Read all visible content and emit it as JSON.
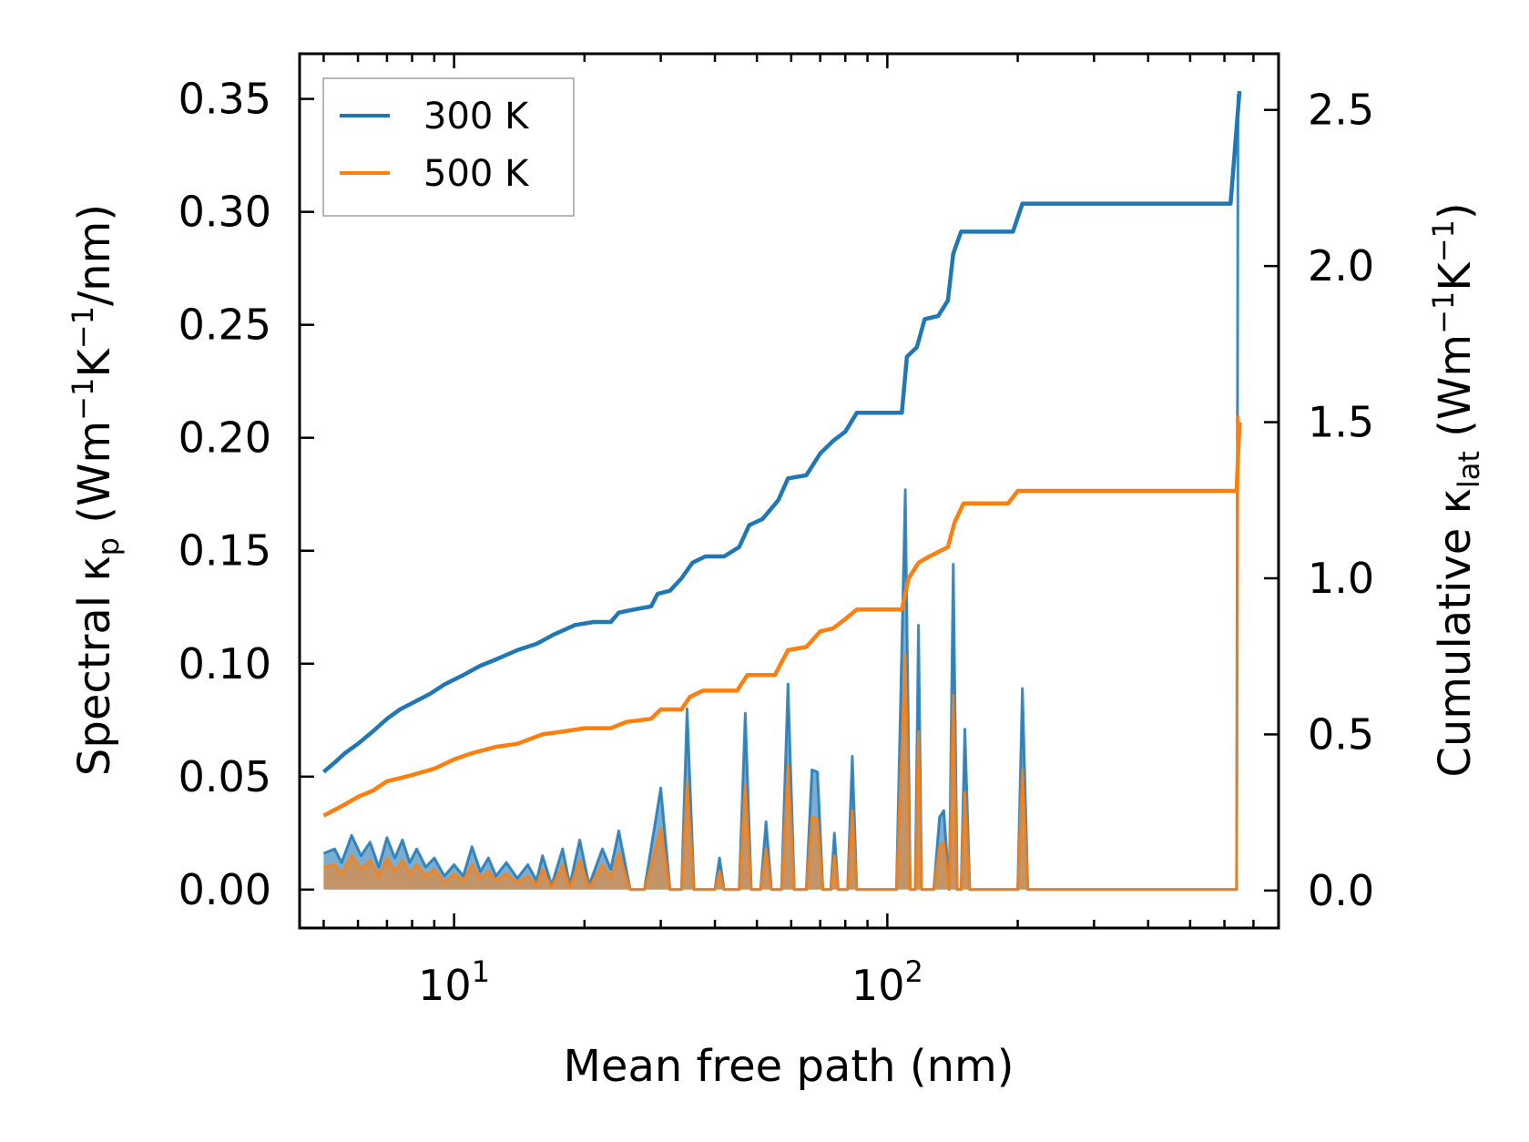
{
  "chart_data": {
    "type": "line",
    "x_scale": "log",
    "xlim": [
      4.4,
      800
    ],
    "ylim_left": [
      -0.017,
      0.37
    ],
    "ylim_right": [
      -0.12,
      2.68
    ],
    "xlabel": "Mean free path (nm)",
    "ylabel_left": {
      "main": "Spectral κ",
      "sub": "p",
      "unit_open": " (Wm",
      "exp1": "−1",
      "unit_mid": "K",
      "exp2": "−1",
      "unit_close": "/nm)"
    },
    "ylabel_right": {
      "main": "Cumulative κ",
      "sub": "lat",
      "unit_open": " (Wm",
      "exp1": "−1",
      "unit_mid": "K",
      "exp2": "−1",
      "unit_close": ")"
    },
    "x_ticks": [
      {
        "value": 10,
        "base": "10",
        "exp": "1"
      },
      {
        "value": 100,
        "base": "10",
        "exp": "2"
      }
    ],
    "y_ticks_left": [
      {
        "value": 0.0,
        "label": "0.00"
      },
      {
        "value": 0.05,
        "label": "0.05"
      },
      {
        "value": 0.1,
        "label": "0.10"
      },
      {
        "value": 0.15,
        "label": "0.15"
      },
      {
        "value": 0.2,
        "label": "0.20"
      },
      {
        "value": 0.25,
        "label": "0.25"
      },
      {
        "value": 0.3,
        "label": "0.30"
      },
      {
        "value": 0.35,
        "label": "0.35"
      }
    ],
    "y_ticks_right": [
      {
        "value": 0.0,
        "label": "0.0"
      },
      {
        "value": 0.5,
        "label": "0.5"
      },
      {
        "value": 1.0,
        "label": "1.0"
      },
      {
        "value": 1.5,
        "label": "1.5"
      },
      {
        "value": 2.0,
        "label": "2.0"
      },
      {
        "value": 2.5,
        "label": "2.5"
      }
    ],
    "legend_position": "top-left",
    "series": [
      {
        "name": "300 K",
        "color": "#1f77b4",
        "cumulative": [
          [
            5.0,
            0.38
          ],
          [
            5.3,
            0.41
          ],
          [
            5.6,
            0.44
          ],
          [
            6.0,
            0.47
          ],
          [
            6.5,
            0.51
          ],
          [
            7.0,
            0.55
          ],
          [
            7.5,
            0.58
          ],
          [
            8.0,
            0.6
          ],
          [
            8.8,
            0.63
          ],
          [
            9.5,
            0.66
          ],
          [
            10.5,
            0.69
          ],
          [
            11.5,
            0.72
          ],
          [
            12.5,
            0.74
          ],
          [
            14.0,
            0.77
          ],
          [
            15.5,
            0.79
          ],
          [
            17.0,
            0.82
          ],
          [
            19.0,
            0.85
          ],
          [
            21.0,
            0.86
          ],
          [
            23.0,
            0.86
          ],
          [
            24.0,
            0.89
          ],
          [
            26.0,
            0.9
          ],
          [
            28.5,
            0.91
          ],
          [
            29.5,
            0.95
          ],
          [
            31.5,
            0.96
          ],
          [
            33.5,
            1.0
          ],
          [
            35.5,
            1.05
          ],
          [
            38.0,
            1.07
          ],
          [
            42.0,
            1.07
          ],
          [
            45.5,
            1.1
          ],
          [
            48.0,
            1.17
          ],
          [
            51.5,
            1.19
          ],
          [
            56.0,
            1.25
          ],
          [
            59.0,
            1.32
          ],
          [
            65.0,
            1.33
          ],
          [
            70.0,
            1.4
          ],
          [
            75.0,
            1.44
          ],
          [
            80.0,
            1.47
          ],
          [
            85.0,
            1.53
          ],
          [
            108.0,
            1.53
          ],
          [
            111.0,
            1.71
          ],
          [
            117.0,
            1.74
          ],
          [
            122.0,
            1.83
          ],
          [
            131.0,
            1.84
          ],
          [
            138.0,
            1.89
          ],
          [
            142.0,
            2.04
          ],
          [
            148.0,
            2.11
          ],
          [
            195.0,
            2.11
          ],
          [
            205.0,
            2.2
          ],
          [
            620.0,
            2.2
          ],
          [
            650.0,
            2.56
          ]
        ],
        "spectral": [
          [
            5.0,
            0.016
          ],
          [
            5.3,
            0.018
          ],
          [
            5.5,
            0.012
          ],
          [
            5.8,
            0.024
          ],
          [
            6.1,
            0.015
          ],
          [
            6.4,
            0.021
          ],
          [
            6.7,
            0.01
          ],
          [
            7.0,
            0.023
          ],
          [
            7.3,
            0.014
          ],
          [
            7.6,
            0.022
          ],
          [
            7.9,
            0.012
          ],
          [
            8.2,
            0.018
          ],
          [
            8.6,
            0.01
          ],
          [
            9.0,
            0.014
          ],
          [
            9.5,
            0.006
          ],
          [
            10.0,
            0.011
          ],
          [
            10.5,
            0.006
          ],
          [
            11.0,
            0.019
          ],
          [
            11.5,
            0.008
          ],
          [
            12.0,
            0.014
          ],
          [
            12.5,
            0.006
          ],
          [
            13.2,
            0.012
          ],
          [
            14.0,
            0.005
          ],
          [
            14.8,
            0.011
          ],
          [
            15.5,
            0.004
          ],
          [
            16.0,
            0.015
          ],
          [
            16.8,
            0.002
          ],
          [
            17.8,
            0.018
          ],
          [
            18.5,
            0.002
          ],
          [
            19.5,
            0.022
          ],
          [
            20.5,
            0.002
          ],
          [
            22.0,
            0.018
          ],
          [
            23.0,
            0.009
          ],
          [
            24.0,
            0.026
          ],
          [
            25.5,
            0.0
          ],
          [
            27.5,
            0.0
          ],
          [
            30.0,
            0.045
          ],
          [
            31.5,
            0.0
          ],
          [
            33.5,
            0.0
          ],
          [
            34.5,
            0.08
          ],
          [
            35.8,
            0.0
          ],
          [
            40.0,
            0.0
          ],
          [
            41.0,
            0.014
          ],
          [
            42.0,
            0.0
          ],
          [
            45.5,
            0.0
          ],
          [
            47.0,
            0.078
          ],
          [
            48.5,
            0.0
          ],
          [
            51.0,
            0.0
          ],
          [
            52.5,
            0.03
          ],
          [
            54.0,
            0.0
          ],
          [
            57.0,
            0.0
          ],
          [
            59.0,
            0.091
          ],
          [
            61.0,
            0.0
          ],
          [
            65.0,
            0.0
          ],
          [
            67.0,
            0.053
          ],
          [
            69.0,
            0.052
          ],
          [
            71.0,
            0.0
          ],
          [
            74.0,
            0.0
          ],
          [
            75.5,
            0.025
          ],
          [
            77.0,
            0.0
          ],
          [
            81.0,
            0.0
          ],
          [
            83.0,
            0.059
          ],
          [
            85.0,
            0.0
          ],
          [
            105.0,
            0.0
          ],
          [
            110.0,
            0.177
          ],
          [
            113.0,
            0.0
          ],
          [
            116.0,
            0.0
          ],
          [
            118.0,
            0.117
          ],
          [
            120.0,
            0.0
          ],
          [
            128.0,
            0.0
          ],
          [
            132.0,
            0.032
          ],
          [
            135.0,
            0.035
          ],
          [
            139.0,
            0.0
          ],
          [
            142.0,
            0.144
          ],
          [
            145.0,
            0.0
          ],
          [
            148.0,
            0.0
          ],
          [
            151.0,
            0.071
          ],
          [
            155.0,
            0.0
          ],
          [
            200.0,
            0.0
          ],
          [
            205.0,
            0.089
          ],
          [
            211.0,
            0.0
          ],
          [
            640.0,
            0.0
          ],
          [
            645.0,
            0.352
          ]
        ]
      },
      {
        "name": "500 K",
        "color": "#ff7f0e",
        "cumulative": [
          [
            5.0,
            0.24
          ],
          [
            5.5,
            0.27
          ],
          [
            6.0,
            0.3
          ],
          [
            6.5,
            0.32
          ],
          [
            7.0,
            0.35
          ],
          [
            7.5,
            0.36
          ],
          [
            8.0,
            0.37
          ],
          [
            9.0,
            0.39
          ],
          [
            10.0,
            0.42
          ],
          [
            11.0,
            0.44
          ],
          [
            12.5,
            0.46
          ],
          [
            14.0,
            0.47
          ],
          [
            16.0,
            0.5
          ],
          [
            18.0,
            0.51
          ],
          [
            20.0,
            0.52
          ],
          [
            23.0,
            0.52
          ],
          [
            25.0,
            0.54
          ],
          [
            28.5,
            0.55
          ],
          [
            30.0,
            0.58
          ],
          [
            33.5,
            0.58
          ],
          [
            35.0,
            0.62
          ],
          [
            37.5,
            0.64
          ],
          [
            45.0,
            0.64
          ],
          [
            47.5,
            0.69
          ],
          [
            55.0,
            0.69
          ],
          [
            59.0,
            0.77
          ],
          [
            65.0,
            0.78
          ],
          [
            70.0,
            0.83
          ],
          [
            75.0,
            0.84
          ],
          [
            80.0,
            0.87
          ],
          [
            85.0,
            0.9
          ],
          [
            108.0,
            0.9
          ],
          [
            112.0,
            1.0
          ],
          [
            118.0,
            1.05
          ],
          [
            125.0,
            1.07
          ],
          [
            138.0,
            1.1
          ],
          [
            143.0,
            1.18
          ],
          [
            150.0,
            1.24
          ],
          [
            190.0,
            1.24
          ],
          [
            200.0,
            1.28
          ],
          [
            640.0,
            1.28
          ],
          [
            650.0,
            1.5
          ]
        ],
        "spectral": [
          [
            5.0,
            0.01
          ],
          [
            5.3,
            0.011
          ],
          [
            5.5,
            0.007
          ],
          [
            5.8,
            0.015
          ],
          [
            6.1,
            0.009
          ],
          [
            6.4,
            0.013
          ],
          [
            6.7,
            0.006
          ],
          [
            7.0,
            0.014
          ],
          [
            7.3,
            0.008
          ],
          [
            7.6,
            0.013
          ],
          [
            7.9,
            0.007
          ],
          [
            8.2,
            0.011
          ],
          [
            8.6,
            0.006
          ],
          [
            9.0,
            0.009
          ],
          [
            9.5,
            0.003
          ],
          [
            10.0,
            0.007
          ],
          [
            10.5,
            0.004
          ],
          [
            11.0,
            0.011
          ],
          [
            11.5,
            0.005
          ],
          [
            12.0,
            0.008
          ],
          [
            12.5,
            0.004
          ],
          [
            13.2,
            0.007
          ],
          [
            14.0,
            0.003
          ],
          [
            14.8,
            0.006
          ],
          [
            15.5,
            0.002
          ],
          [
            16.0,
            0.009
          ],
          [
            16.8,
            0.001
          ],
          [
            17.8,
            0.011
          ],
          [
            18.5,
            0.001
          ],
          [
            19.5,
            0.013
          ],
          [
            20.5,
            0.001
          ],
          [
            22.0,
            0.011
          ],
          [
            23.0,
            0.005
          ],
          [
            24.0,
            0.016
          ],
          [
            25.5,
            0.0
          ],
          [
            27.5,
            0.0
          ],
          [
            30.0,
            0.027
          ],
          [
            31.5,
            0.0
          ],
          [
            33.5,
            0.0
          ],
          [
            34.5,
            0.048
          ],
          [
            35.8,
            0.0
          ],
          [
            40.0,
            0.0
          ],
          [
            41.0,
            0.008
          ],
          [
            42.0,
            0.0
          ],
          [
            45.5,
            0.0
          ],
          [
            47.0,
            0.047
          ],
          [
            48.5,
            0.0
          ],
          [
            51.0,
            0.0
          ],
          [
            52.5,
            0.018
          ],
          [
            54.0,
            0.0
          ],
          [
            57.0,
            0.0
          ],
          [
            59.0,
            0.055
          ],
          [
            61.0,
            0.0
          ],
          [
            65.0,
            0.0
          ],
          [
            67.0,
            0.032
          ],
          [
            69.0,
            0.031
          ],
          [
            71.0,
            0.0
          ],
          [
            74.0,
            0.0
          ],
          [
            75.5,
            0.015
          ],
          [
            77.0,
            0.0
          ],
          [
            81.0,
            0.0
          ],
          [
            83.0,
            0.035
          ],
          [
            85.0,
            0.0
          ],
          [
            105.0,
            0.0
          ],
          [
            110.0,
            0.104
          ],
          [
            113.0,
            0.0
          ],
          [
            116.0,
            0.0
          ],
          [
            118.0,
            0.07
          ],
          [
            120.0,
            0.0
          ],
          [
            128.0,
            0.0
          ],
          [
            132.0,
            0.019
          ],
          [
            135.0,
            0.021
          ],
          [
            139.0,
            0.0
          ],
          [
            142.0,
            0.086
          ],
          [
            145.0,
            0.0
          ],
          [
            148.0,
            0.0
          ],
          [
            151.0,
            0.043
          ],
          [
            155.0,
            0.0
          ],
          [
            200.0,
            0.0
          ],
          [
            205.0,
            0.053
          ],
          [
            211.0,
            0.0
          ],
          [
            640.0,
            0.0
          ],
          [
            645.0,
            0.21
          ]
        ]
      }
    ]
  }
}
